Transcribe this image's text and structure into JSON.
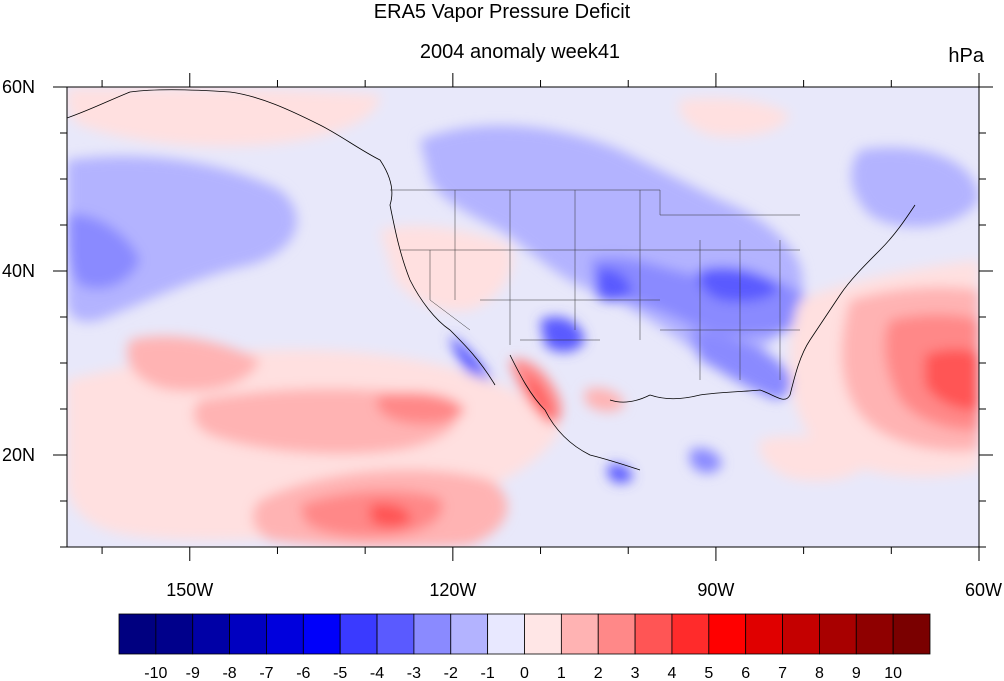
{
  "map": {
    "title": "ERA5 Vapor Pressure Deficit",
    "subtitle": "2004 anomaly week41",
    "units": "hPa",
    "lon_range": [
      -164,
      -60
    ],
    "lat_range": [
      10,
      60
    ],
    "x_ticks": [
      {
        "lon": -150,
        "label": "150W"
      },
      {
        "lon": -120,
        "label": "120W"
      },
      {
        "lon": -90,
        "label": "90W"
      },
      {
        "lon": -60,
        "label": "60W"
      }
    ],
    "y_ticks": [
      {
        "lat": 60,
        "label": "60N"
      },
      {
        "lat": 40,
        "label": "40N"
      },
      {
        "lat": 20,
        "label": "20N"
      }
    ]
  },
  "colorbar": {
    "labels": [
      "-10",
      "-9",
      "-8",
      "-7",
      "-6",
      "-5",
      "-4",
      "-3",
      "-2",
      "-1",
      "0",
      "1",
      "2",
      "3",
      "4",
      "5",
      "6",
      "7",
      "8",
      "9",
      "10"
    ],
    "colors": [
      "#000080",
      "#00008b",
      "#0000a6",
      "#0000c0",
      "#0000dd",
      "#0000fa",
      "#3a3aff",
      "#5a5aff",
      "#8a8aff",
      "#b3b3ff",
      "#e8e8ff",
      "#ffe6e6",
      "#ffb3b3",
      "#ff8888",
      "#ff5555",
      "#ff2b2b",
      "#ff0000",
      "#e00000",
      "#c40000",
      "#a80000",
      "#8f0000",
      "#7a0000"
    ]
  },
  "colors": {
    "ocean_base": "#e8e8fa",
    "neg1": "#b3b3ff",
    "neg2": "#8a8aff",
    "neg3": "#5a5aff",
    "neg4": "#2f2fff",
    "pos1": "#ffe0e0",
    "pos2": "#ffb3b3",
    "pos3": "#ff8888",
    "pos4": "#ff5555",
    "pos5": "#ff2b2b"
  }
}
